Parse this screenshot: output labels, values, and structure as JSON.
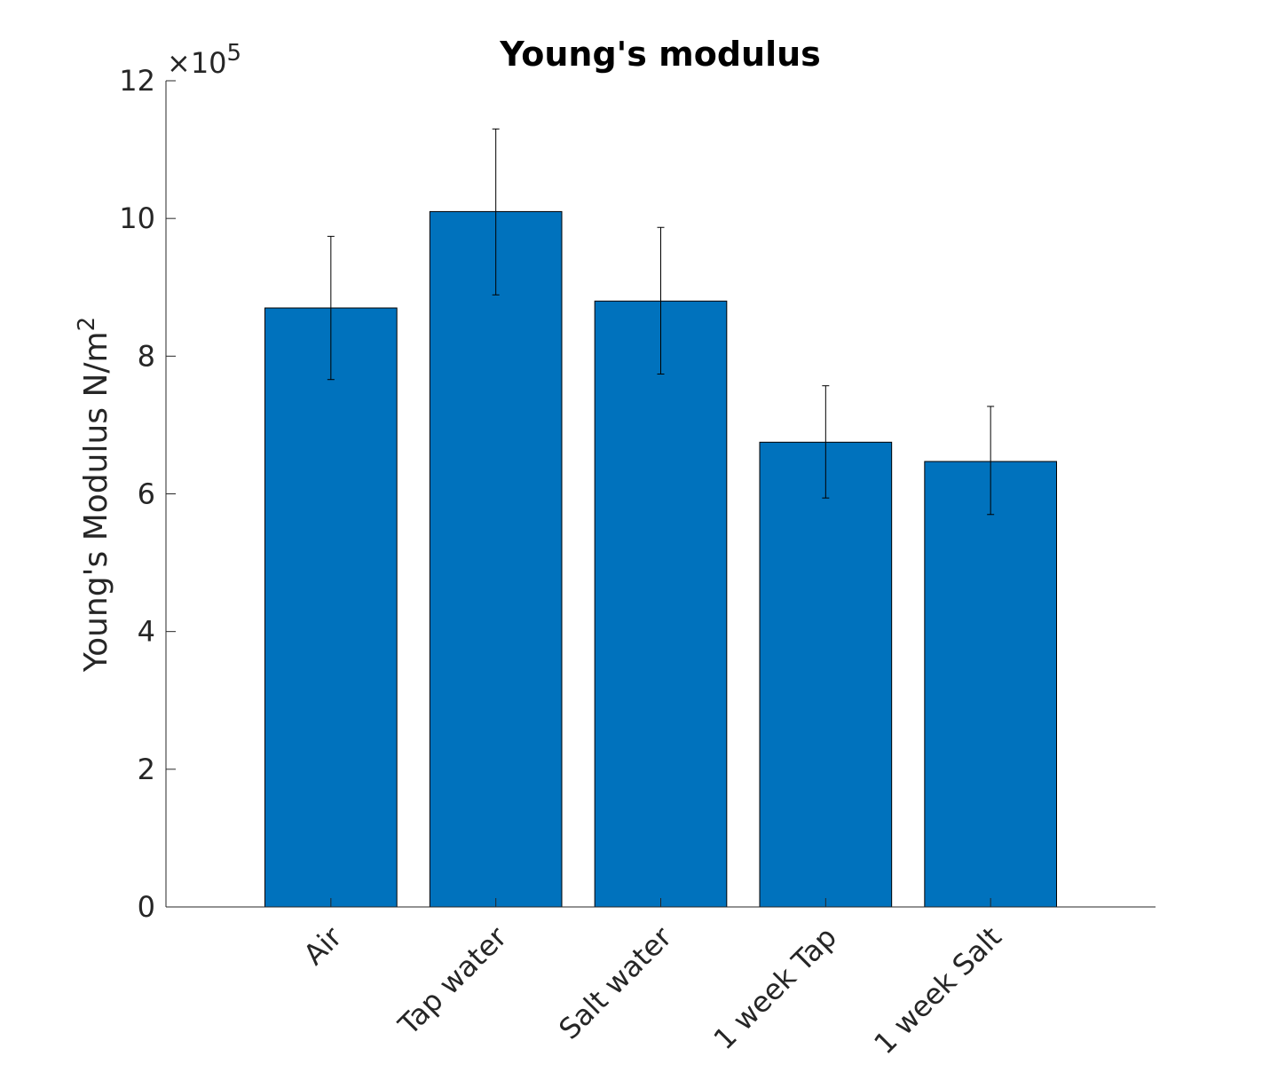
{
  "chart_data": {
    "type": "bar",
    "title": "Young's modulus",
    "xlabel": "",
    "ylabel_main": "Young's Modulus N/m",
    "ylabel_sup": "2",
    "categories": [
      "Air",
      "Tap water",
      "Salt water",
      "1 week Tap",
      "1 week Salt"
    ],
    "values": [
      8.7,
      10.1,
      8.8,
      6.75,
      6.47
    ],
    "error_high": [
      9.74,
      11.3,
      9.87,
      7.57,
      7.27
    ],
    "error_low": [
      7.66,
      8.89,
      7.74,
      5.94,
      5.7
    ],
    "ylim": [
      0,
      12
    ],
    "yticks": [
      0,
      2,
      4,
      6,
      8,
      10,
      12
    ],
    "ytick_labels": [
      "0",
      "2",
      "4",
      "6",
      "8",
      "10",
      "12"
    ],
    "exponent_prefix": "×10",
    "exponent_power": "5",
    "bar_color": "#0072bd",
    "grid": false,
    "legend": "none"
  }
}
